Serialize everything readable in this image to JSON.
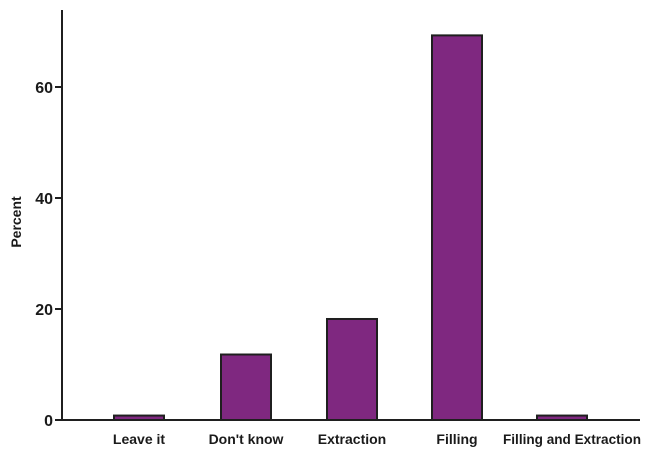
{
  "chart_data": {
    "type": "bar",
    "categories": [
      "Leave it",
      "Don't know",
      "Extraction",
      "Filling",
      "Filling and Extraction"
    ],
    "values": [
      0.8,
      11.8,
      18.2,
      69.3,
      0.8
    ],
    "ylabel": "Percent",
    "xlabel": "",
    "ylim": [
      0,
      75
    ],
    "yticks": [
      0,
      20,
      40,
      60
    ],
    "ytick_labels": [
      "0",
      "20",
      "40",
      "60"
    ],
    "grid": false,
    "legend": "none",
    "colors": {
      "bar_fill": "#7f2880",
      "bar_stroke": "#1f1f1f",
      "axis": "#1f1f1f"
    }
  }
}
